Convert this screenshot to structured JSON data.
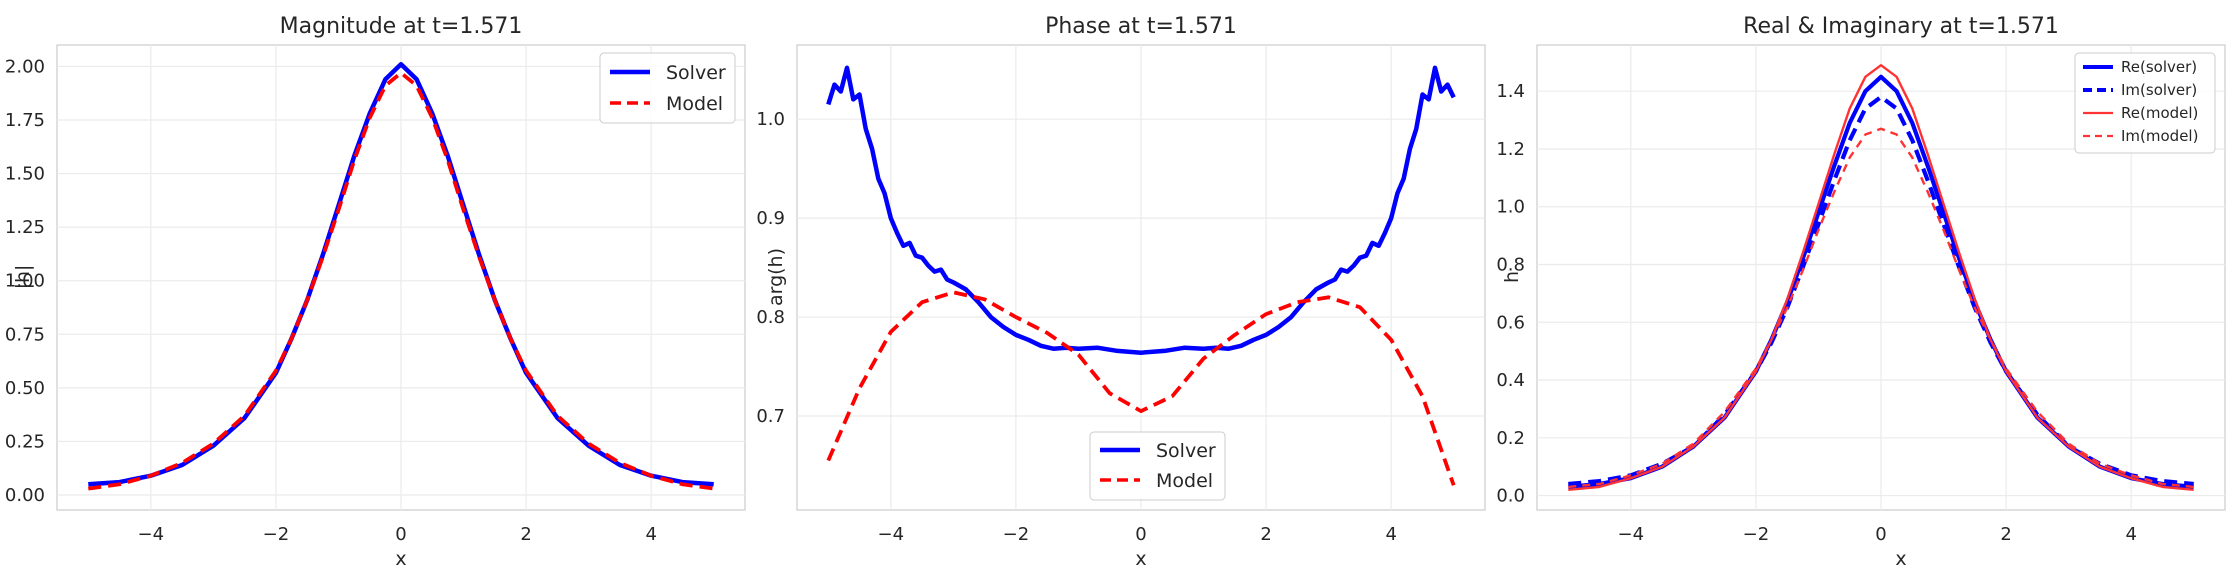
{
  "chart_data": [
    {
      "type": "line",
      "title": "Magnitude at t=1.571",
      "xlabel": "x",
      "ylabel": "|h|",
      "xlim": [
        -5.5,
        5.5
      ],
      "ylim": [
        -0.07,
        2.1
      ],
      "xticks": [
        -4,
        -2,
        0,
        2,
        4
      ],
      "yticks": [
        0.0,
        0.25,
        0.5,
        0.75,
        1.0,
        1.25,
        1.5,
        1.75,
        2.0
      ],
      "ytick_labels": [
        "0.00",
        "0.25",
        "0.50",
        "0.75",
        "1.00",
        "1.25",
        "1.50",
        "1.75",
        "2.00"
      ],
      "grid": true,
      "legend": "top-right",
      "series": [
        {
          "name": "Solver",
          "color": "#0000ff",
          "dash": "solid",
          "x": [
            -5,
            -4.5,
            -4,
            -3.5,
            -3,
            -2.5,
            -2,
            -1.75,
            -1.5,
            -1.25,
            -1,
            -0.75,
            -0.5,
            -0.25,
            0,
            0.25,
            0.5,
            0.75,
            1,
            1.25,
            1.5,
            1.75,
            2,
            2.5,
            3,
            3.5,
            4,
            4.5,
            5
          ],
          "y": [
            0.05,
            0.06,
            0.09,
            0.14,
            0.23,
            0.36,
            0.57,
            0.73,
            0.91,
            1.12,
            1.35,
            1.58,
            1.78,
            1.94,
            2.01,
            1.94,
            1.78,
            1.58,
            1.35,
            1.12,
            0.91,
            0.73,
            0.57,
            0.36,
            0.23,
            0.14,
            0.09,
            0.06,
            0.05
          ]
        },
        {
          "name": "Model",
          "color": "#ff0000",
          "dash": "dashed",
          "x": [
            -5,
            -4.5,
            -4,
            -3.5,
            -3,
            -2.5,
            -2,
            -1.75,
            -1.5,
            -1.25,
            -1,
            -0.75,
            -0.5,
            -0.25,
            0,
            0.25,
            0.5,
            0.75,
            1,
            1.25,
            1.5,
            1.75,
            2,
            2.5,
            3,
            3.5,
            4,
            4.5,
            5
          ],
          "y": [
            0.03,
            0.05,
            0.09,
            0.15,
            0.24,
            0.37,
            0.58,
            0.73,
            0.91,
            1.11,
            1.33,
            1.56,
            1.76,
            1.91,
            1.97,
            1.91,
            1.76,
            1.56,
            1.33,
            1.11,
            0.91,
            0.73,
            0.58,
            0.37,
            0.24,
            0.15,
            0.09,
            0.05,
            0.03
          ]
        }
      ]
    },
    {
      "type": "line",
      "title": "Phase at t=1.571",
      "xlabel": "x",
      "ylabel": "arg(h)",
      "xlim": [
        -5.5,
        5.5
      ],
      "ylim": [
        0.605,
        1.075
      ],
      "xticks": [
        -4,
        -2,
        0,
        2,
        4
      ],
      "yticks": [
        0.7,
        0.8,
        0.9,
        1.0
      ],
      "ytick_labels": [
        "0.7",
        "0.8",
        "0.9",
        "1.0"
      ],
      "grid": true,
      "legend": "bottom-center",
      "series": [
        {
          "name": "Solver",
          "color": "#0000ff",
          "dash": "solid",
          "x": [
            -5,
            -4.9,
            -4.8,
            -4.7,
            -4.6,
            -4.5,
            -4.4,
            -4.3,
            -4.2,
            -4.1,
            -4.0,
            -3.9,
            -3.8,
            -3.7,
            -3.6,
            -3.5,
            -3.4,
            -3.3,
            -3.2,
            -3.1,
            -3.0,
            -2.8,
            -2.6,
            -2.4,
            -2.2,
            -2.0,
            -1.8,
            -1.6,
            -1.4,
            -1.2,
            -1.0,
            -0.7,
            -0.4,
            0,
            0.4,
            0.7,
            1.0,
            1.2,
            1.4,
            1.6,
            1.8,
            2.0,
            2.2,
            2.4,
            2.6,
            2.8,
            3.0,
            3.1,
            3.2,
            3.3,
            3.4,
            3.5,
            3.6,
            3.7,
            3.8,
            3.9,
            4.0,
            4.1,
            4.2,
            4.3,
            4.4,
            4.5,
            4.6,
            4.7,
            4.8,
            4.9,
            5.0
          ],
          "y": [
            1.015,
            1.035,
            1.028,
            1.052,
            1.02,
            1.025,
            0.99,
            0.97,
            0.94,
            0.925,
            0.9,
            0.885,
            0.872,
            0.875,
            0.862,
            0.86,
            0.852,
            0.846,
            0.848,
            0.838,
            0.835,
            0.828,
            0.815,
            0.8,
            0.79,
            0.782,
            0.777,
            0.771,
            0.768,
            0.769,
            0.768,
            0.769,
            0.766,
            0.764,
            0.766,
            0.769,
            0.768,
            0.769,
            0.768,
            0.771,
            0.777,
            0.782,
            0.79,
            0.8,
            0.815,
            0.828,
            0.835,
            0.838,
            0.848,
            0.846,
            0.852,
            0.86,
            0.862,
            0.875,
            0.872,
            0.885,
            0.9,
            0.925,
            0.94,
            0.97,
            0.99,
            1.025,
            1.02,
            1.052,
            1.028,
            1.035,
            1.022
          ]
        },
        {
          "name": "Model",
          "color": "#ff0000",
          "dash": "dashed",
          "x": [
            -5,
            -4.5,
            -4,
            -3.5,
            -3,
            -2.5,
            -2,
            -1.5,
            -1,
            -0.5,
            0,
            0.5,
            1,
            1.5,
            2,
            2.5,
            3,
            3.5,
            4,
            4.5,
            5
          ],
          "y": [
            0.655,
            0.728,
            0.785,
            0.815,
            0.825,
            0.818,
            0.8,
            0.784,
            0.762,
            0.723,
            0.705,
            0.72,
            0.758,
            0.782,
            0.803,
            0.815,
            0.82,
            0.81,
            0.777,
            0.72,
            0.63
          ]
        }
      ]
    },
    {
      "type": "line",
      "title": "Real & Imaginary at t=1.571",
      "xlabel": "x",
      "ylabel": "h",
      "xlim": [
        -5.5,
        5.5
      ],
      "ylim": [
        -0.05,
        1.56
      ],
      "xticks": [
        -4,
        -2,
        0,
        2,
        4
      ],
      "yticks": [
        0.0,
        0.2,
        0.4,
        0.6,
        0.8,
        1.0,
        1.2,
        1.4
      ],
      "ytick_labels": [
        "0.0",
        "0.2",
        "0.4",
        "0.6",
        "0.8",
        "1.0",
        "1.2",
        "1.4"
      ],
      "grid": true,
      "legend": "top-right",
      "series": [
        {
          "name": "Re(solver)",
          "color": "#0000ff",
          "dash": "solid",
          "width": "thick",
          "x": [
            -5,
            -4.5,
            -4,
            -3.5,
            -3,
            -2.5,
            -2,
            -1.75,
            -1.5,
            -1.25,
            -1,
            -0.75,
            -0.5,
            -0.25,
            0,
            0.25,
            0.5,
            0.75,
            1,
            1.25,
            1.5,
            1.75,
            2,
            2.5,
            3,
            3.5,
            4,
            4.5,
            5
          ],
          "y": [
            0.03,
            0.04,
            0.06,
            0.1,
            0.17,
            0.27,
            0.43,
            0.54,
            0.67,
            0.82,
            0.98,
            1.14,
            1.29,
            1.4,
            1.45,
            1.4,
            1.29,
            1.14,
            0.98,
            0.82,
            0.67,
            0.54,
            0.43,
            0.27,
            0.17,
            0.1,
            0.06,
            0.04,
            0.03
          ]
        },
        {
          "name": "Im(solver)",
          "color": "#0000ff",
          "dash": "dashed",
          "width": "thick",
          "x": [
            -5,
            -4.5,
            -4,
            -3.5,
            -3,
            -2.5,
            -2,
            -1.75,
            -1.5,
            -1.25,
            -1,
            -0.75,
            -0.5,
            -0.25,
            0,
            0.25,
            0.5,
            0.75,
            1,
            1.25,
            1.5,
            1.75,
            2,
            2.5,
            3,
            3.5,
            4,
            4.5,
            5
          ],
          "y": [
            0.04,
            0.05,
            0.07,
            0.11,
            0.17,
            0.28,
            0.43,
            0.53,
            0.65,
            0.79,
            0.94,
            1.09,
            1.23,
            1.34,
            1.38,
            1.34,
            1.23,
            1.09,
            0.94,
            0.79,
            0.65,
            0.53,
            0.43,
            0.28,
            0.17,
            0.11,
            0.07,
            0.05,
            0.04
          ]
        },
        {
          "name": "Re(model)",
          "color": "#ff3333",
          "dash": "solid",
          "width": "thin",
          "x": [
            -5,
            -4.5,
            -4,
            -3.5,
            -3,
            -2.5,
            -2,
            -1.75,
            -1.5,
            -1.25,
            -1,
            -0.75,
            -0.5,
            -0.25,
            0,
            0.25,
            0.5,
            0.75,
            1,
            1.25,
            1.5,
            1.75,
            2,
            2.5,
            3,
            3.5,
            4,
            4.5,
            5
          ],
          "y": [
            0.02,
            0.03,
            0.06,
            0.1,
            0.17,
            0.27,
            0.43,
            0.54,
            0.68,
            0.84,
            1.01,
            1.18,
            1.34,
            1.45,
            1.49,
            1.45,
            1.34,
            1.18,
            1.01,
            0.84,
            0.68,
            0.54,
            0.43,
            0.27,
            0.17,
            0.1,
            0.06,
            0.03,
            0.02
          ]
        },
        {
          "name": "Im(model)",
          "color": "#ff3333",
          "dash": "dashed",
          "width": "thin",
          "x": [
            -5,
            -4.5,
            -4,
            -3.5,
            -3,
            -2.5,
            -2,
            -1.75,
            -1.5,
            -1.25,
            -1,
            -0.75,
            -0.5,
            -0.25,
            0,
            0.25,
            0.5,
            0.75,
            1,
            1.25,
            1.5,
            1.75,
            2,
            2.5,
            3,
            3.5,
            4,
            4.5,
            5
          ],
          "y": [
            0.03,
            0.04,
            0.07,
            0.11,
            0.18,
            0.29,
            0.44,
            0.54,
            0.65,
            0.78,
            0.92,
            1.05,
            1.17,
            1.25,
            1.27,
            1.25,
            1.17,
            1.05,
            0.92,
            0.78,
            0.65,
            0.54,
            0.44,
            0.29,
            0.18,
            0.11,
            0.07,
            0.04,
            0.03
          ]
        }
      ]
    }
  ]
}
